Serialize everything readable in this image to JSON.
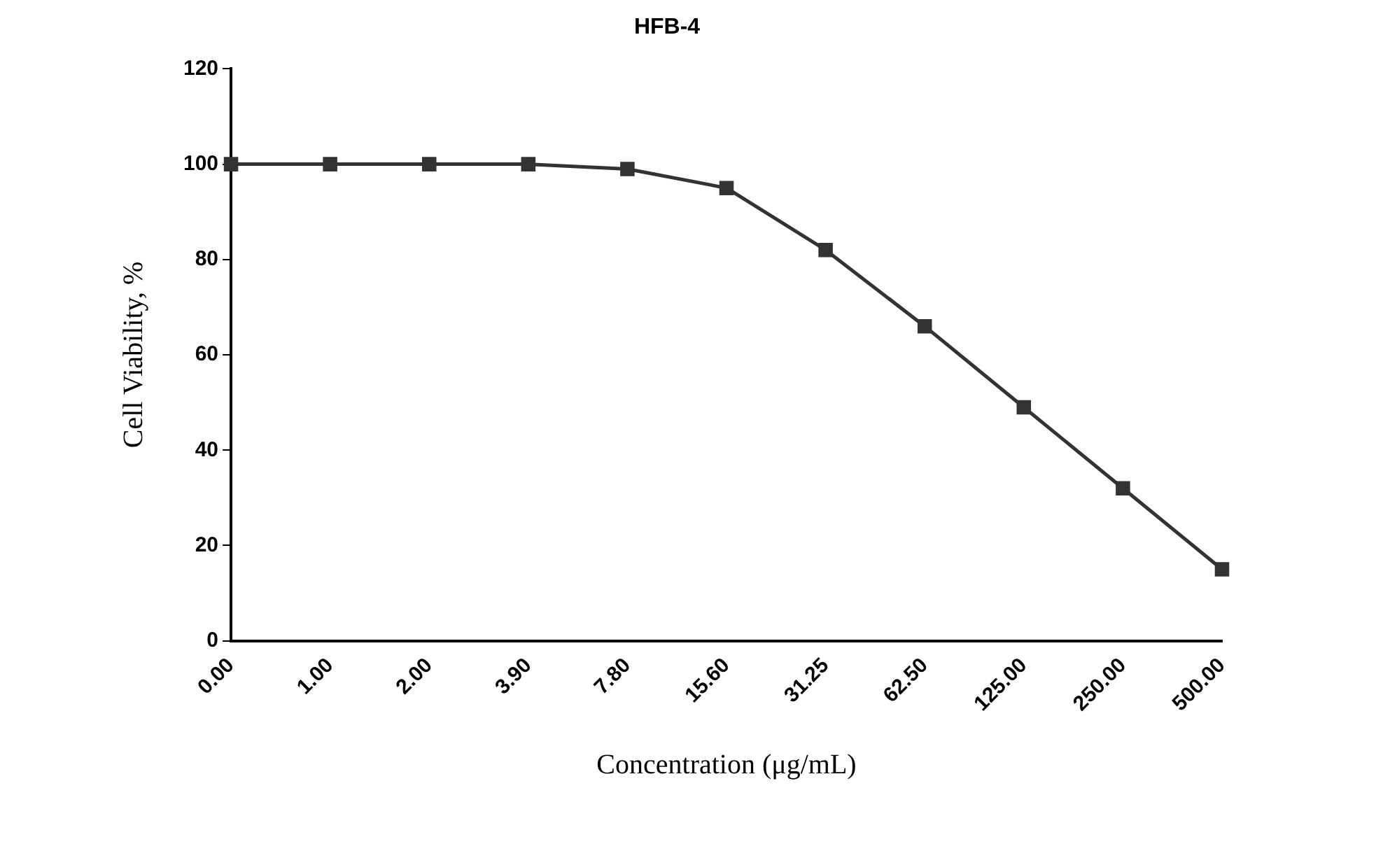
{
  "chart_data": {
    "type": "line",
    "title": "HFB-4",
    "xlabel": "Concentration (μg/mL)",
    "ylabel": "Cell Viability, %",
    "categories": [
      "0.00",
      "1.00",
      "2.00",
      "3.90",
      "7.80",
      "15.60",
      "31.25",
      "62.50",
      "125.00",
      "250.00",
      "500.00"
    ],
    "series": [
      {
        "color": "#333333",
        "values": [
          100,
          100,
          100,
          100,
          99,
          95,
          82,
          66,
          49,
          32,
          15
        ]
      }
    ],
    "ylim": [
      0,
      120
    ],
    "yticks": [
      0,
      20,
      40,
      60,
      80,
      100,
      120
    ],
    "grid": false,
    "legend": false,
    "marker": "square",
    "line_style": "solid"
  }
}
